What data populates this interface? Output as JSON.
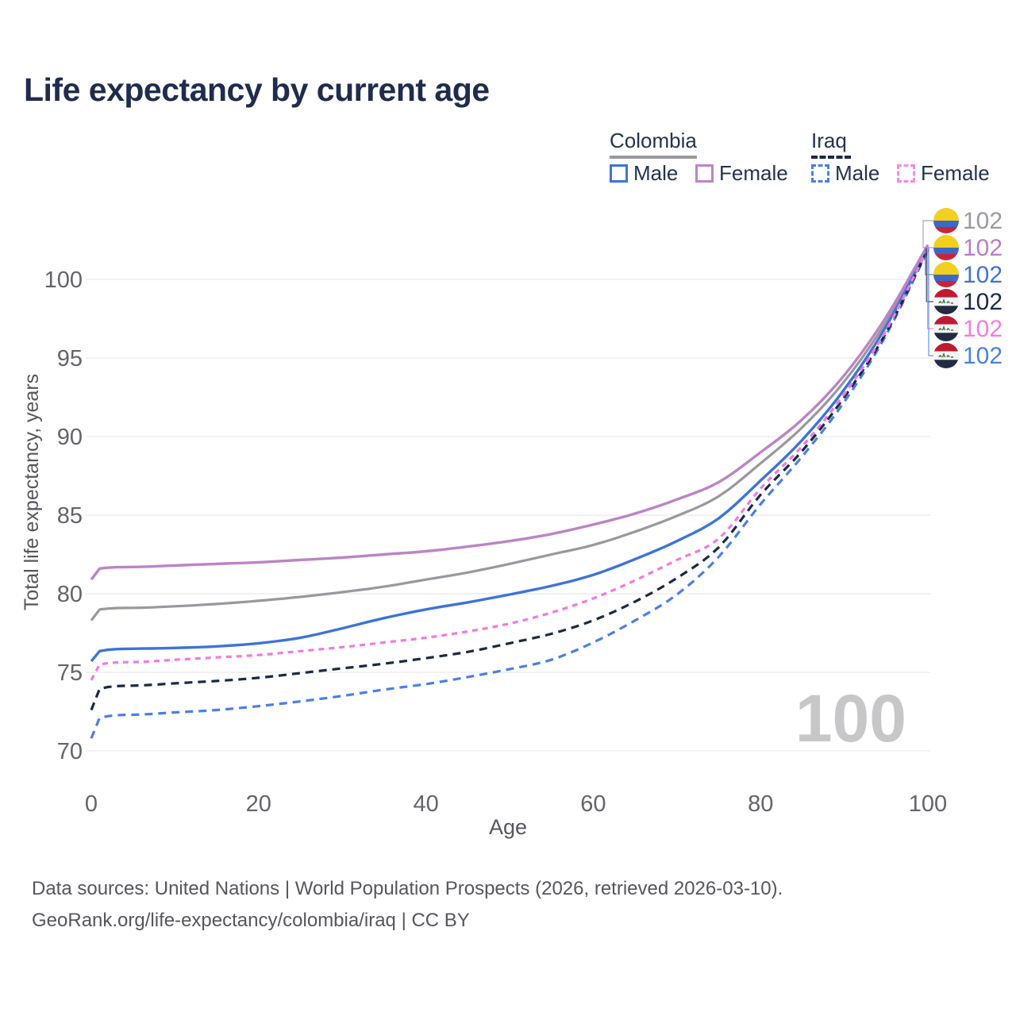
{
  "title": "Life expectancy by current age",
  "watermark": {
    "text": "100",
    "meaning": "current age indicator"
  },
  "legend": {
    "groups": [
      {
        "name": "Colombia",
        "line_style": "solid",
        "underline_color": "#98989e",
        "items": [
          {
            "label": "Male",
            "color": "#3d74d9",
            "dashed": false
          },
          {
            "label": "Female",
            "color": "#bc84c6",
            "dashed": false
          }
        ]
      },
      {
        "name": "Iraq",
        "line_style": "dashed",
        "underline_color": "#1b2945",
        "items": [
          {
            "label": "Male",
            "color": "#4a80e3",
            "dashed": true
          },
          {
            "label": "Female",
            "color": "#f58ae5",
            "dashed": true
          }
        ]
      }
    ]
  },
  "footer": {
    "line1": "Data sources: United Nations | World Population Prospects (2026, retrieved 2026-03-10).",
    "line2": "GeoRank.org/life-expectancy/colombia/iraq | CC BY"
  },
  "colors": {
    "title": "#1f2c4d",
    "grid": "#eaeaee",
    "tick_text": "#64646a",
    "axis_title_text": "#56565c",
    "watermark": "#c7c7ca"
  },
  "flags": {
    "colombia": {
      "yellow": "#f3cf1f",
      "blue": "#3c68c9",
      "red": "#c8243a"
    },
    "iraq": {
      "red": "#bf1b30",
      "white": "#f4f4f4",
      "black": "#222b42",
      "green": "#2f7d41"
    }
  },
  "chart_data": {
    "type": "line",
    "title": "Life expectancy by current age",
    "xlabel": "Age",
    "ylabel": "Total life expectancy, years",
    "xlim": [
      0,
      100
    ],
    "ylim": [
      70,
      103
    ],
    "x_ticks": [
      0,
      20,
      40,
      60,
      80,
      100
    ],
    "y_ticks": [
      70,
      75,
      80,
      85,
      90,
      95,
      100
    ],
    "grid": "horizontal-only",
    "legend_position": "top-right",
    "x": [
      0,
      1,
      5,
      10,
      15,
      20,
      25,
      30,
      35,
      40,
      45,
      50,
      55,
      60,
      65,
      70,
      75,
      80,
      85,
      90,
      95,
      100
    ],
    "series": [
      {
        "key": "colombia-all",
        "name": "Colombia",
        "color": "#98989e",
        "dash": "solid",
        "width": 3.2,
        "values": [
          78.3,
          79.0,
          79.1,
          79.2,
          79.35,
          79.55,
          79.8,
          80.1,
          80.45,
          80.9,
          81.35,
          81.9,
          82.5,
          83.1,
          83.95,
          84.95,
          86.2,
          88.3,
          90.6,
          93.5,
          97.3,
          102.1
        ]
      },
      {
        "key": "colombia-male",
        "name": "Colombia Male",
        "color": "#3d74d9",
        "dash": "solid",
        "width": 3.4,
        "values": [
          75.7,
          76.35,
          76.5,
          76.55,
          76.65,
          76.85,
          77.2,
          77.8,
          78.45,
          79.0,
          79.45,
          79.95,
          80.5,
          81.2,
          82.2,
          83.35,
          84.8,
          87.2,
          89.8,
          93.0,
          97.0,
          102.0
        ]
      },
      {
        "key": "colombia-female",
        "name": "Colombia Female",
        "color": "#bc84c6",
        "dash": "solid",
        "width": 3.4,
        "values": [
          80.9,
          81.6,
          81.7,
          81.8,
          81.9,
          82.0,
          82.15,
          82.3,
          82.5,
          82.7,
          83.0,
          83.35,
          83.8,
          84.4,
          85.1,
          86.0,
          87.1,
          89.0,
          91.1,
          93.9,
          97.6,
          102.2
        ]
      },
      {
        "key": "iraq-male",
        "name": "Iraq Male",
        "color": "#4a80e3",
        "dash": "10 7",
        "width": 3.2,
        "values": [
          70.8,
          72.1,
          72.3,
          72.45,
          72.6,
          72.85,
          73.15,
          73.5,
          73.9,
          74.25,
          74.7,
          75.2,
          75.8,
          76.9,
          78.3,
          79.95,
          82.35,
          85.7,
          88.75,
          92.2,
          96.45,
          101.85
        ]
      },
      {
        "key": "iraq-all",
        "name": "Iraq",
        "color": "#1b2945",
        "dash": "10 7",
        "width": 3.2,
        "values": [
          72.6,
          73.95,
          74.15,
          74.3,
          74.45,
          74.65,
          74.95,
          75.25,
          75.55,
          75.9,
          76.3,
          76.85,
          77.45,
          78.3,
          79.5,
          81.0,
          82.95,
          86.3,
          89.1,
          92.5,
          96.6,
          101.9
        ]
      },
      {
        "key": "iraq-female",
        "name": "Iraq Female",
        "color": "#f478e2",
        "dash": "7 6",
        "width": 3.2,
        "values": [
          74.5,
          75.5,
          75.65,
          75.8,
          75.95,
          76.1,
          76.35,
          76.6,
          76.9,
          77.2,
          77.6,
          78.1,
          78.8,
          79.7,
          80.85,
          82.15,
          83.5,
          86.7,
          89.4,
          92.7,
          96.75,
          101.95
        ]
      }
    ],
    "end_labels": [
      {
        "series": "colombia-all",
        "flag": "colombia",
        "value": "102",
        "text_color": "#9a9aa0"
      },
      {
        "series": "colombia-female",
        "flag": "colombia",
        "value": "102",
        "text_color": "#b77fc2"
      },
      {
        "series": "colombia-male",
        "flag": "colombia",
        "value": "102",
        "text_color": "#3d74d9"
      },
      {
        "series": "iraq-all",
        "flag": "iraq",
        "value": "102",
        "text_color": "#1d2b45"
      },
      {
        "series": "iraq-female",
        "flag": "iraq",
        "value": "102",
        "text_color": "#f57ae3"
      },
      {
        "series": "iraq-male",
        "flag": "iraq",
        "value": "102",
        "text_color": "#4a80e3"
      }
    ]
  }
}
